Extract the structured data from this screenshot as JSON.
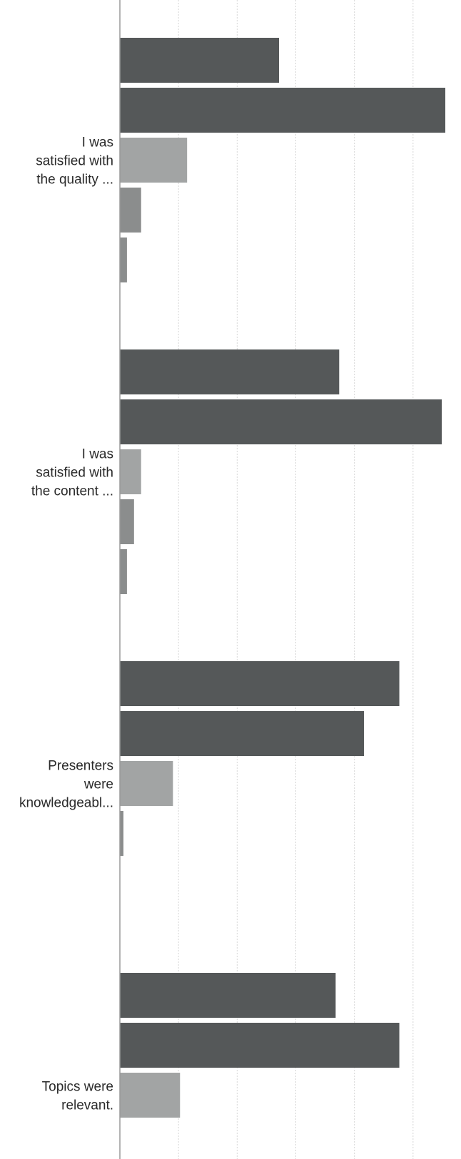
{
  "chart_data": {
    "type": "bar",
    "orientation": "horizontal",
    "categories": [
      [
        "I was",
        "satisfied with",
        "the quality ..."
      ],
      [
        "I was",
        "satisfied with",
        "the content ..."
      ],
      [
        "Presenters",
        "were",
        "knowledgeabl..."
      ],
      [
        "Topics were",
        "relevant."
      ]
    ],
    "series": [
      {
        "values": [
          45,
          62,
          79,
          61
        ],
        "color": "#555859"
      },
      {
        "values": [
          92,
          91,
          69,
          79
        ],
        "color": "#555859"
      },
      {
        "values": [
          19,
          6,
          15,
          17
        ],
        "color": "#a2a4a4"
      },
      {
        "values": [
          6,
          4,
          1,
          null
        ],
        "color": "#8b8d8d"
      },
      {
        "values": [
          2,
          2,
          null,
          null
        ],
        "color": "#8b8d8d"
      }
    ],
    "xlim": [
      0,
      92
    ],
    "grid": true,
    "legend": "none"
  }
}
